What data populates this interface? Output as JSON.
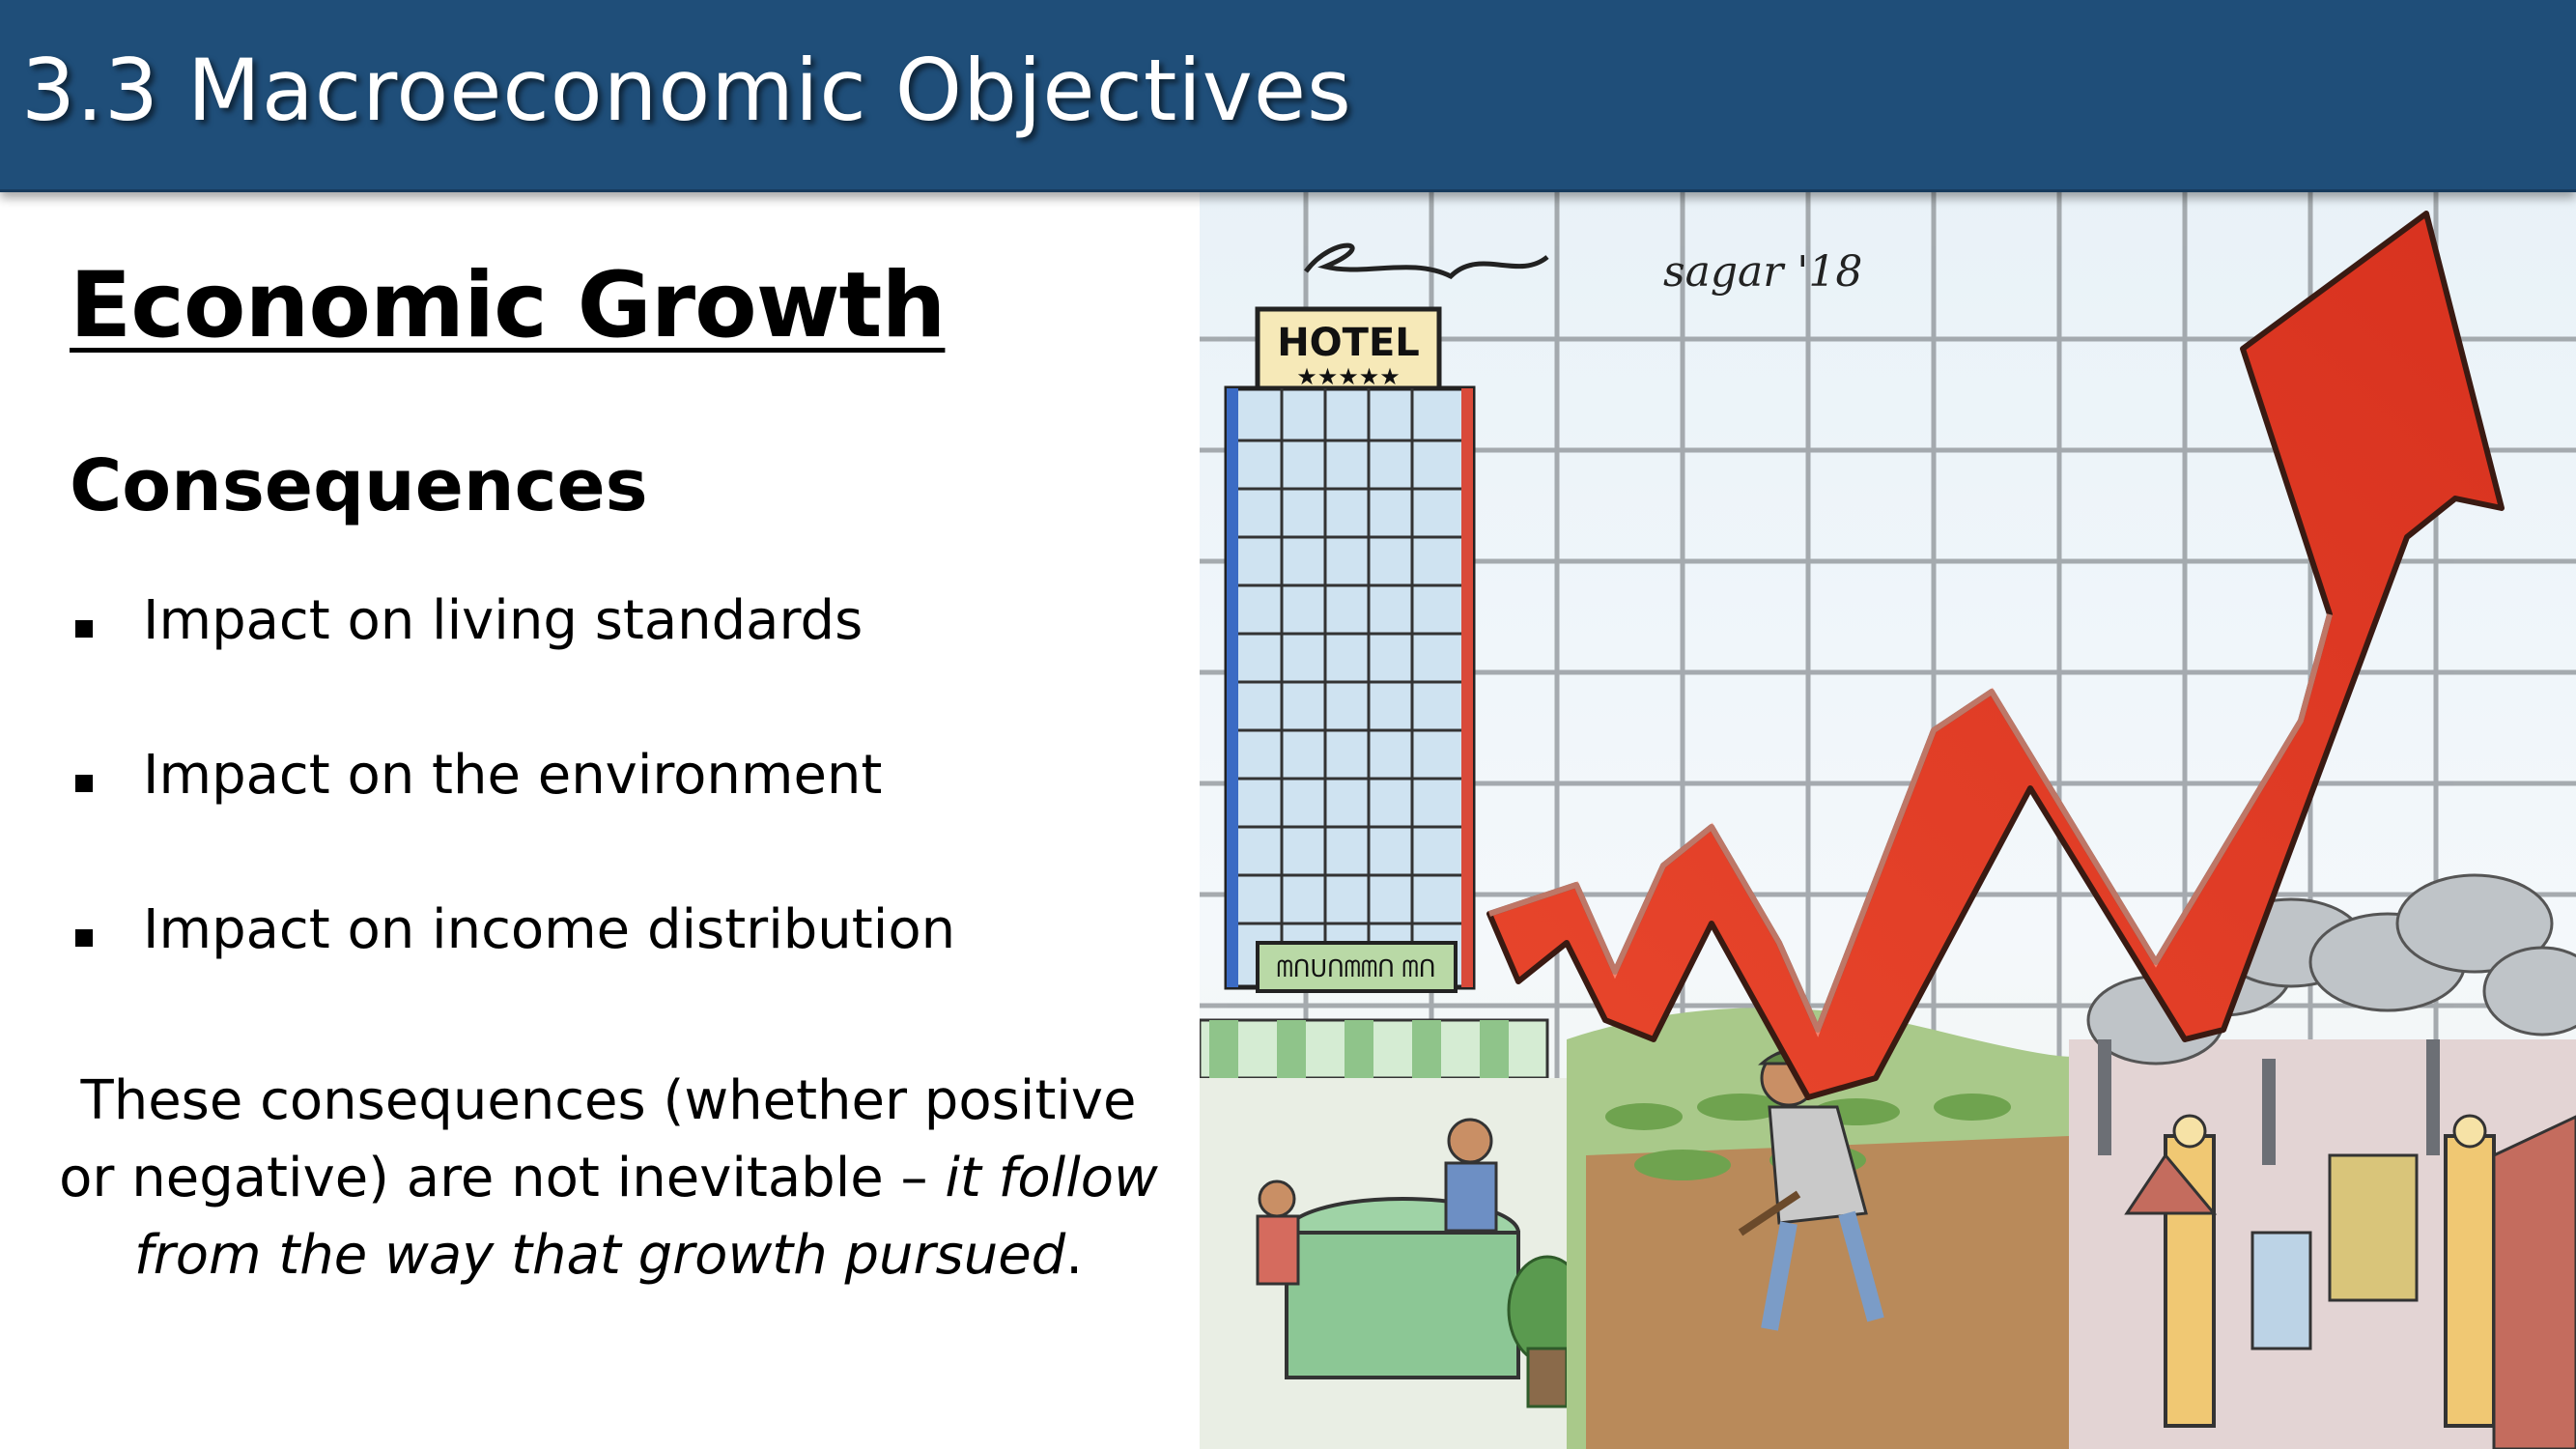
{
  "header": {
    "title": "3.3 Macroeconomic Objectives"
  },
  "content": {
    "heading": "Economic Growth",
    "subheading": "Consequences",
    "bullets": [
      "Impact on living standards",
      "Impact on the environment",
      "Impact on income distribution"
    ],
    "note": {
      "plain": "These consequences (whether positive or negative) are not inevitable –",
      "italic": "it follow from the way that growth pursued",
      "end": "."
    }
  },
  "illustration": {
    "signature": "sagar '18",
    "hotel_sign": "HOTEL",
    "hotel_stars": "★★★★★",
    "shop_sign": "ᗰᑎᑌᑎᗰᗰᑎ ᗰᑎ"
  },
  "colors": {
    "title_bar": "#1f4e79",
    "arrow": "#e0412b"
  }
}
